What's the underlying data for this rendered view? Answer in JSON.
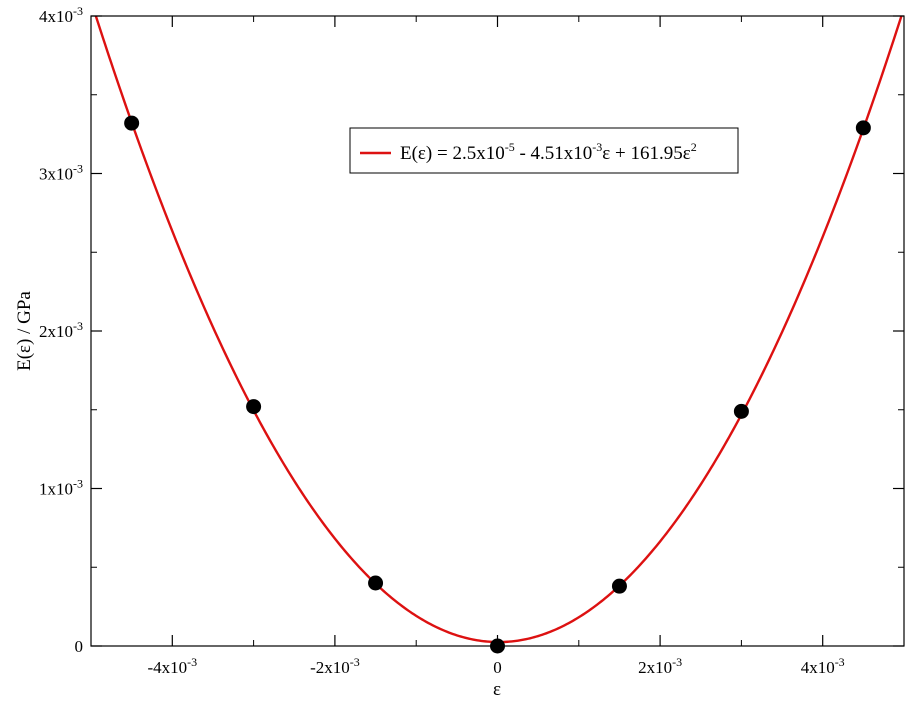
{
  "chart_data": {
    "type": "scatter",
    "title": "",
    "xlabel": "ε",
    "ylabel": "E(ε) / GPa",
    "xlim": [
      -0.005,
      0.005
    ],
    "ylim": [
      0,
      0.004
    ],
    "grid": false,
    "legend_position": "top-right",
    "x_ticks": [
      {
        "value": -0.004,
        "mantissa": "-4x10",
        "exp": "-3"
      },
      {
        "value": -0.002,
        "mantissa": "-2x10",
        "exp": "-3"
      },
      {
        "value": 0,
        "mantissa": "0",
        "exp": ""
      },
      {
        "value": 0.002,
        "mantissa": "2x10",
        "exp": "-3"
      },
      {
        "value": 0.004,
        "mantissa": "4x10",
        "exp": "-3"
      }
    ],
    "y_ticks": [
      {
        "value": 0,
        "mantissa": "0",
        "exp": ""
      },
      {
        "value": 0.001,
        "mantissa": "1x10",
        "exp": "-3"
      },
      {
        "value": 0.002,
        "mantissa": "2x10",
        "exp": "-3"
      },
      {
        "value": 0.003,
        "mantissa": "3x10",
        "exp": "-3"
      },
      {
        "value": 0.004,
        "mantissa": "4x10",
        "exp": "-3"
      }
    ],
    "x_minor_ticks": [
      -0.005,
      -0.003,
      -0.001,
      0.001,
      0.003,
      0.005
    ],
    "y_minor_ticks": [
      0.0005,
      0.0015,
      0.0025,
      0.0035
    ],
    "series": [
      {
        "kind": "points",
        "color": "#000000",
        "x": [
          -0.0045,
          -0.003,
          -0.0015,
          0.0,
          0.0015,
          0.003,
          0.0045
        ],
        "y": [
          0.00332,
          0.00152,
          0.0004,
          0.0,
          0.00038,
          0.00149,
          0.00329
        ]
      },
      {
        "kind": "fit",
        "name": "E(ε) = 2.5x10^-5 - 4.51x10^-3 ε + 161.95ε^2",
        "color": "#dd1111",
        "coefficients": {
          "a0": 2.5e-05,
          "a1": -0.00451,
          "a2": 161.95
        }
      }
    ],
    "legend": {
      "parts": [
        {
          "text": "E(ε) = 2.5x10",
          "sup": false
        },
        {
          "text": "-5",
          "sup": true
        },
        {
          "text": " - 4.51x10",
          "sup": false
        },
        {
          "text": "-3",
          "sup": true
        },
        {
          "text": "ε + 161.95ε",
          "sup": false
        },
        {
          "text": "2",
          "sup": true
        }
      ]
    }
  }
}
